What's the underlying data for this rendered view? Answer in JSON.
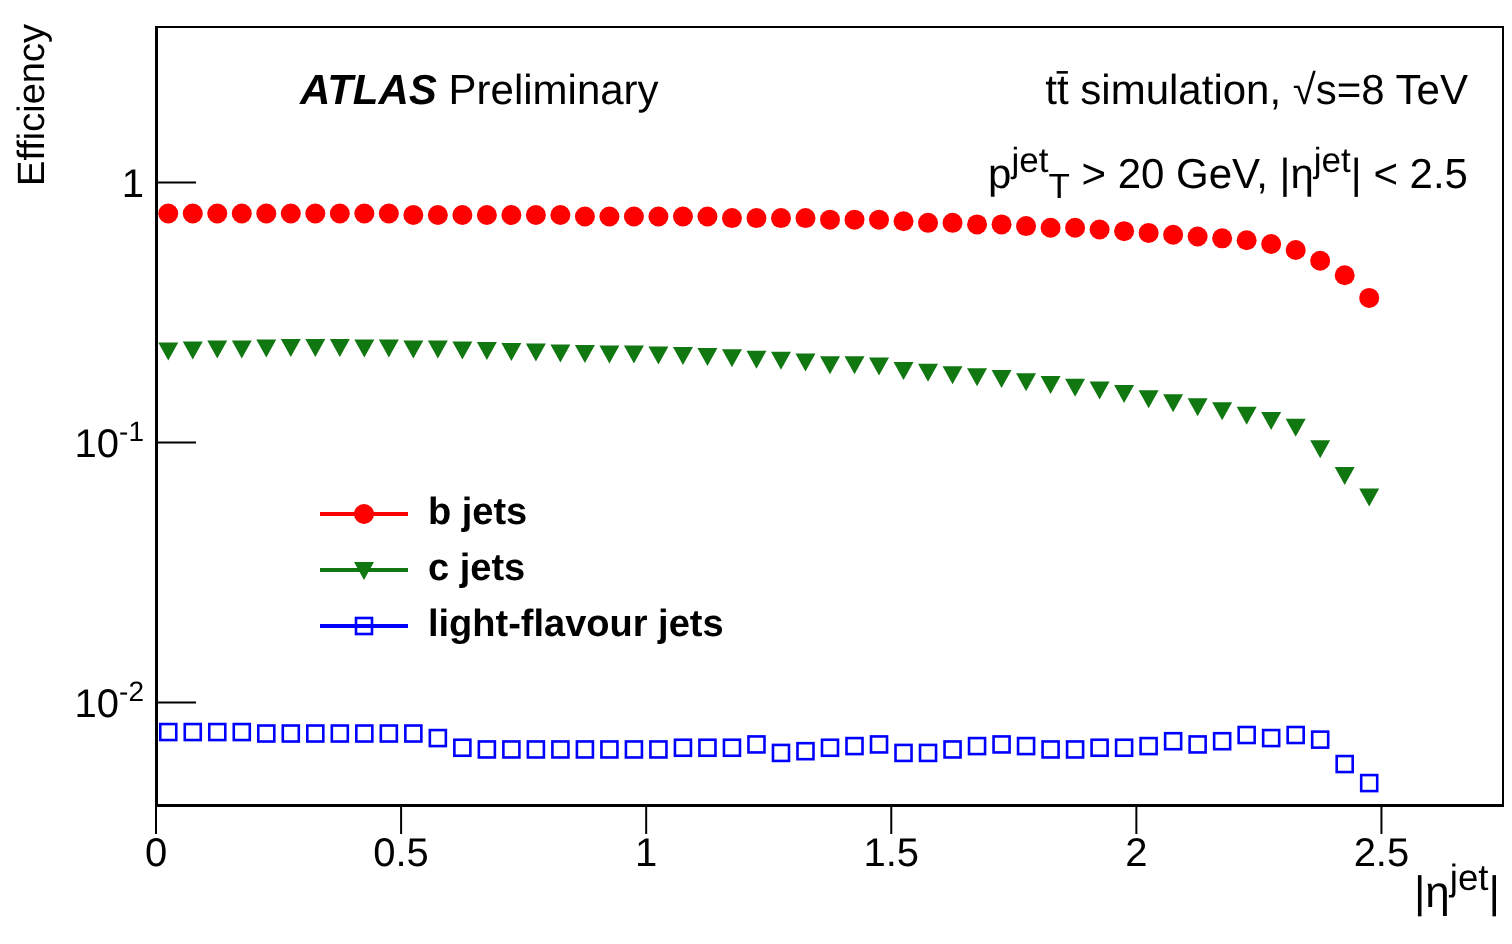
{
  "chart_data": {
    "type": "scatter",
    "xlabel": "|η$^{jet}$|",
    "ylabel": "Efficiency",
    "log": "y",
    "legend": "left",
    "annotations": [
      "ATLAS Preliminary",
      "tt̄ simulation, √s=8 TeV",
      "p$^{jet}$$_{T}$ > 20 GeV, |η$^{jet}$| < 2.5"
    ],
    "xlim": [
      0,
      2.75
    ],
    "xticks": [
      0,
      0.5,
      1,
      1.5,
      2,
      2.5
    ],
    "ylim": [
      0.004,
      4
    ],
    "yticks": [
      {
        "value": 0.01,
        "label": "10$^{-2}$"
      },
      {
        "value": 0.1,
        "label": "10$^{-1}$"
      },
      1
    ],
    "x": [
      0.025,
      0.075,
      0.125,
      0.175,
      0.225,
      0.275,
      0.325,
      0.375,
      0.425,
      0.475,
      0.525,
      0.575,
      0.625,
      0.675,
      0.725,
      0.775,
      0.825,
      0.875,
      0.925,
      0.975,
      1.025,
      1.075,
      1.125,
      1.175,
      1.225,
      1.275,
      1.325,
      1.375,
      1.425,
      1.475,
      1.525,
      1.575,
      1.625,
      1.675,
      1.725,
      1.775,
      1.825,
      1.875,
      1.925,
      1.975,
      2.025,
      2.075,
      2.125,
      2.175,
      2.225,
      2.275,
      2.325,
      2.375,
      2.425,
      2.475
    ],
    "series": [
      {
        "name": "b jets",
        "color": "#ff0000",
        "marker": "circle",
        "values": [
          0.76,
          0.76,
          0.76,
          0.76,
          0.76,
          0.76,
          0.76,
          0.76,
          0.76,
          0.76,
          0.75,
          0.75,
          0.75,
          0.75,
          0.75,
          0.75,
          0.75,
          0.74,
          0.74,
          0.74,
          0.74,
          0.74,
          0.74,
          0.73,
          0.73,
          0.73,
          0.73,
          0.72,
          0.72,
          0.72,
          0.71,
          0.7,
          0.7,
          0.69,
          0.69,
          0.68,
          0.67,
          0.67,
          0.66,
          0.65,
          0.64,
          0.63,
          0.62,
          0.61,
          0.6,
          0.58,
          0.55,
          0.5,
          0.44,
          0.36
        ]
      },
      {
        "name": "c jets",
        "color": "#117711",
        "marker": "triangle",
        "values": [
          0.226,
          0.228,
          0.23,
          0.23,
          0.232,
          0.233,
          0.233,
          0.233,
          0.232,
          0.232,
          0.23,
          0.23,
          0.228,
          0.227,
          0.225,
          0.224,
          0.222,
          0.221,
          0.22,
          0.22,
          0.218,
          0.217,
          0.215,
          0.213,
          0.21,
          0.208,
          0.205,
          0.2,
          0.2,
          0.198,
          0.19,
          0.187,
          0.183,
          0.18,
          0.177,
          0.172,
          0.168,
          0.164,
          0.16,
          0.155,
          0.148,
          0.143,
          0.138,
          0.133,
          0.128,
          0.122,
          0.115,
          0.095,
          0.075,
          0.062
        ]
      },
      {
        "name": "light-flavour jets",
        "color": "#0000ff",
        "marker": "square",
        "values": [
          0.0077,
          0.0077,
          0.0077,
          0.0077,
          0.0076,
          0.0076,
          0.0076,
          0.0076,
          0.0076,
          0.0076,
          0.0076,
          0.0073,
          0.0067,
          0.0066,
          0.0066,
          0.0066,
          0.0066,
          0.0066,
          0.0066,
          0.0066,
          0.0066,
          0.0067,
          0.0067,
          0.0067,
          0.0069,
          0.0064,
          0.0065,
          0.0067,
          0.0068,
          0.0069,
          0.0064,
          0.0064,
          0.0066,
          0.0068,
          0.0069,
          0.0068,
          0.0066,
          0.0066,
          0.0067,
          0.0067,
          0.0068,
          0.0071,
          0.0069,
          0.0071,
          0.0075,
          0.0073,
          0.0075,
          0.0072,
          0.0058,
          0.0049
        ]
      }
    ]
  }
}
